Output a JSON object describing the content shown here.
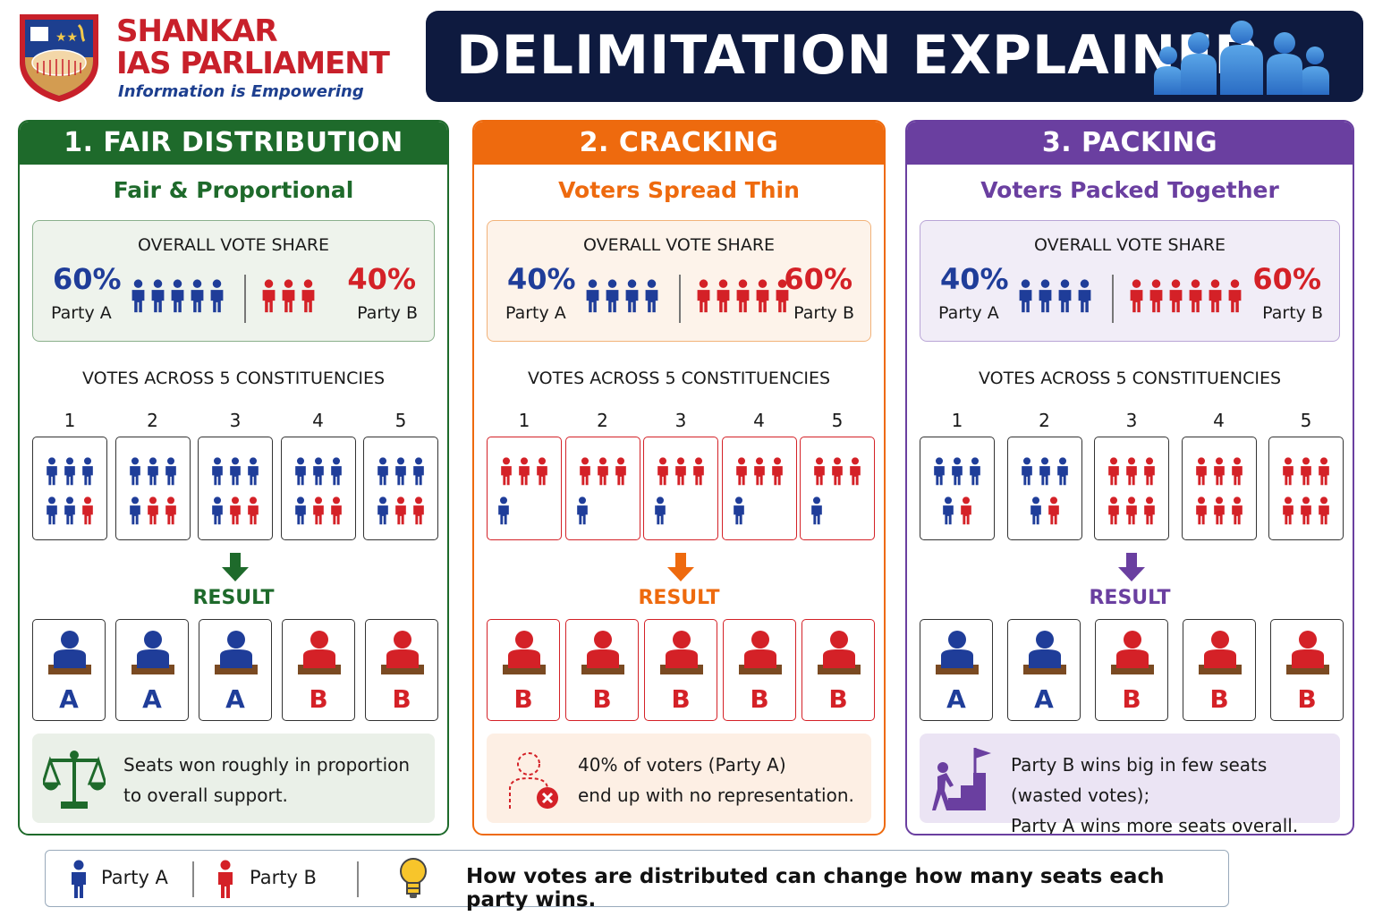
{
  "brand": {
    "name_line1": "SHANKAR",
    "name_line2": "IAS PARLIAMENT",
    "tagline": "Information is Empowering"
  },
  "title": "DELIMITATION EXPLAINED",
  "colors": {
    "party_a": "#1f3d99",
    "party_b": "#d42127",
    "fair": "#1e6a2b",
    "cracking": "#ee6a0e",
    "packing": "#6a3fa0"
  },
  "panels": [
    {
      "heading": "1. FAIR DISTRIBUTION",
      "subtitle": "Fair & Proportional",
      "share_title": "OVERALL VOTE SHARE",
      "left_pct": "60%",
      "left_party": "Party A",
      "right_pct": "40%",
      "right_party": "Party B",
      "left_count": 5,
      "right_count": 3,
      "votes_title": "VOTES ACROSS 5 CONSTITUENCIES",
      "constituency_numbers": [
        "1",
        "2",
        "3",
        "4",
        "5"
      ],
      "constituencies": [
        [
          "A",
          "A",
          "A",
          "A",
          "A",
          "B"
        ],
        [
          "A",
          "A",
          "A",
          "A",
          "B",
          "B"
        ],
        [
          "A",
          "A",
          "A",
          "A",
          "B",
          "B"
        ],
        [
          "A",
          "A",
          "A",
          "A",
          "B",
          "B"
        ],
        [
          "A",
          "A",
          "A",
          "A",
          "B",
          "B"
        ]
      ],
      "result_label": "RESULT",
      "seats": [
        "A",
        "A",
        "A",
        "B",
        "B"
      ],
      "note_line1": "Seats won roughly in proportion",
      "note_line2": "to overall support.",
      "note_icon": "scales-icon"
    },
    {
      "heading": "2. CRACKING",
      "subtitle": "Voters Spread Thin",
      "share_title": "OVERALL VOTE SHARE",
      "left_pct": "40%",
      "left_party": "Party A",
      "right_pct": "60%",
      "right_party": "Party B",
      "left_count": 4,
      "right_count": 5,
      "votes_title": "VOTES ACROSS 5 CONSTITUENCIES",
      "constituency_numbers": [
        "1",
        "2",
        "3",
        "4",
        "5"
      ],
      "constituencies": [
        [
          "B",
          "B",
          "B",
          "A"
        ],
        [
          "B",
          "B",
          "B",
          "A"
        ],
        [
          "B",
          "B",
          "B",
          "A"
        ],
        [
          "B",
          "B",
          "B",
          "A"
        ],
        [
          "B",
          "B",
          "B",
          "A"
        ]
      ],
      "result_label": "RESULT",
      "seats": [
        "B",
        "B",
        "B",
        "B",
        "B"
      ],
      "note_line1": "40% of voters (Party A)",
      "note_line2": "end up with no representation.",
      "note_icon": "no-representation-icon"
    },
    {
      "heading": "3. PACKING",
      "subtitle": "Voters Packed Together",
      "share_title": "OVERALL VOTE SHARE",
      "left_pct": "40%",
      "left_party": "Party A",
      "right_pct": "60%",
      "right_party": "Party B",
      "left_count": 4,
      "right_count": 6,
      "votes_title": "VOTES ACROSS 5 CONSTITUENCIES",
      "constituency_numbers": [
        "1",
        "2",
        "3",
        "4",
        "5"
      ],
      "constituencies": [
        [
          "A",
          "A",
          "A",
          "A",
          "B"
        ],
        [
          "A",
          "A",
          "A",
          "A",
          "B"
        ],
        [
          "B",
          "B",
          "B",
          "B",
          "B",
          "B"
        ],
        [
          "B",
          "B",
          "B",
          "B",
          "B",
          "B"
        ],
        [
          "B",
          "B",
          "B",
          "B",
          "B",
          "B"
        ]
      ],
      "result_label": "RESULT",
      "seats": [
        "A",
        "A",
        "B",
        "B",
        "B"
      ],
      "note_line1": "Party B wins big in few seats (wasted votes);",
      "note_line2": "Party A wins more seats overall.",
      "note_icon": "flag-climber-icon"
    }
  ],
  "legend": {
    "party_a": "Party A",
    "party_b": "Party B",
    "message": "How votes are distributed can change how many seats each party wins.",
    "message_icon": "lightbulb-icon"
  }
}
